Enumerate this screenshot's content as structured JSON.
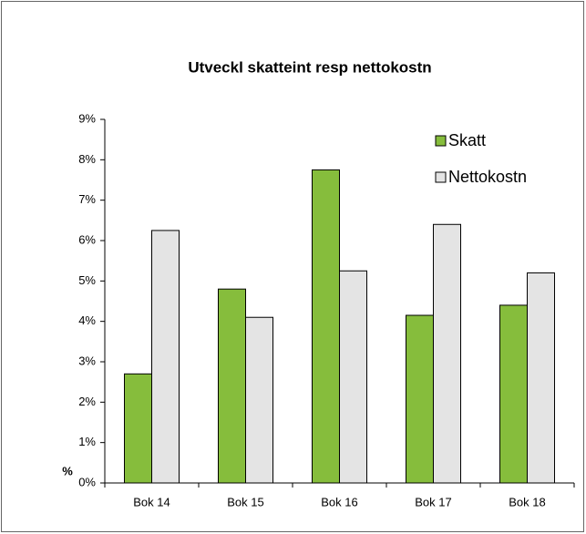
{
  "chart_data": {
    "type": "bar",
    "title": "Utveckl skatteint resp nettokostn",
    "y_label": "%",
    "categories": [
      "Bok 14",
      "Bok 15",
      "Bok 16",
      "Bok 17",
      "Bok 18"
    ],
    "series": [
      {
        "name": "Skatt",
        "color": "#86bd3c",
        "values": [
          2.7,
          4.8,
          7.75,
          4.15,
          4.4
        ]
      },
      {
        "name": "Nettokostn",
        "color": "#e4e4e4",
        "values": [
          6.25,
          4.1,
          5.25,
          6.4,
          5.2
        ]
      }
    ],
    "ylim": [
      0,
      9
    ],
    "yticks": [
      {
        "value": 0,
        "label": "0%"
      },
      {
        "value": 1,
        "label": "1%"
      },
      {
        "value": 2,
        "label": "2%"
      },
      {
        "value": 3,
        "label": "3%"
      },
      {
        "value": 4,
        "label": "4%"
      },
      {
        "value": 5,
        "label": "5%"
      },
      {
        "value": 6,
        "label": "6%"
      },
      {
        "value": 7,
        "label": "7%"
      },
      {
        "value": 8,
        "label": "8%"
      },
      {
        "value": 9,
        "label": "9%"
      }
    ],
    "grid": false,
    "legend": "top-right"
  }
}
